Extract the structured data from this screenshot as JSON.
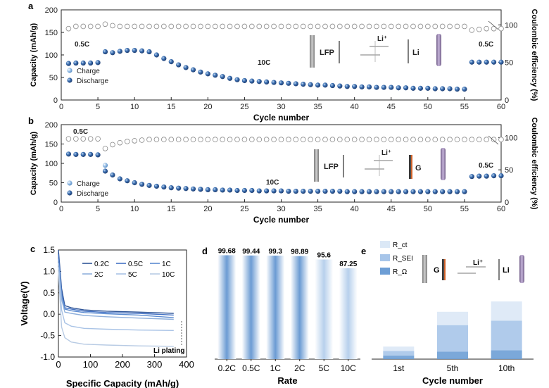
{
  "figure": {
    "panel_a": {
      "letter": "a",
      "title": "",
      "xlabel": "Cycle number",
      "ylabel_left": "Capacity (mAh/g)",
      "ylabel_right": "Coulombic efficiency (%)",
      "xlim": [
        0,
        60
      ],
      "ylim": [
        0,
        200
      ],
      "ylim_right": [
        0,
        120
      ],
      "xticks": [
        "0",
        "5",
        "10",
        "15",
        "20",
        "25",
        "30",
        "35",
        "40",
        "45",
        "50",
        "55",
        "60"
      ],
      "yticks": [
        "0",
        "50",
        "100",
        "150",
        "200"
      ],
      "yticks_right": [
        "0",
        "50",
        "100"
      ],
      "legend": [
        "Charge",
        "Discharge"
      ],
      "rate_labels": [
        "0.5C",
        "10C",
        "0.5C"
      ],
      "schematic": [
        "LFP",
        "Li⁺",
        "Li"
      ]
    },
    "panel_b": {
      "letter": "b",
      "xlabel": "Cycle number",
      "ylabel_left": "Capacity (mAh/g)",
      "ylabel_right": "Coulombic efficiency (%)",
      "xticks": [
        "0",
        "5",
        "10",
        "15",
        "20",
        "25",
        "30",
        "35",
        "40",
        "45",
        "50",
        "55",
        "60"
      ],
      "yticks": [
        "0",
        "50",
        "100",
        "150",
        "200"
      ],
      "yticks_right": [
        "0",
        "50",
        "100"
      ],
      "legend": [
        "Charge",
        "Discharge"
      ],
      "rate_labels": [
        "0.5C",
        "10C",
        "0.5C"
      ],
      "schematic": [
        "LFP",
        "Li⁺",
        "G"
      ]
    },
    "panel_c": {
      "letter": "c",
      "xlabel": "Specific Capacity (mAh/g)",
      "ylabel": "Voltage(V)",
      "xticks": [
        "0",
        "100",
        "200",
        "300",
        "400"
      ],
      "yticks": [
        "-1.0",
        "-0.5",
        "0.0",
        "0.5",
        "1.0",
        "1.5"
      ],
      "legend": [
        "0.2C",
        "0.5C",
        "1C",
        "2C",
        "5C",
        "10C"
      ],
      "annotation": "Li plating"
    },
    "panel_d": {
      "letter": "d",
      "xlabel": "Rate"
    },
    "panel_e": {
      "letter": "e",
      "xlabel": "Cycle number",
      "legend": [
        "R_ct",
        "R_SEI",
        "R_Ω"
      ],
      "schematic": [
        "G",
        "Li⁺",
        "Li"
      ]
    }
  },
  "chart_data": [
    {
      "type": "scatter",
      "panel": "a",
      "xlim": [
        0,
        60
      ],
      "ylim": [
        0,
        200
      ],
      "ylim_right": [
        0,
        120
      ],
      "series": [
        {
          "name": "Discharge",
          "axis": "left",
          "x": [
            1,
            2,
            3,
            4,
            5,
            6,
            7,
            8,
            9,
            10,
            11,
            12,
            13,
            14,
            15,
            16,
            17,
            18,
            19,
            20,
            21,
            22,
            23,
            24,
            25,
            26,
            27,
            28,
            29,
            30,
            31,
            32,
            33,
            34,
            35,
            36,
            37,
            38,
            39,
            40,
            41,
            42,
            43,
            44,
            45,
            46,
            47,
            48,
            49,
            50,
            51,
            52,
            53,
            54,
            55,
            56,
            57,
            58,
            59,
            60
          ],
          "values": [
            81,
            82,
            82,
            82,
            83,
            107,
            105,
            108,
            110,
            110,
            109,
            107,
            100,
            92,
            85,
            78,
            72,
            67,
            62,
            58,
            55,
            52,
            48,
            45,
            43,
            42,
            41,
            40,
            39,
            38,
            37,
            36,
            35,
            34,
            33,
            33,
            32,
            31,
            30,
            30,
            29,
            29,
            28,
            28,
            28,
            27,
            27,
            26,
            26,
            26,
            25,
            25,
            25,
            24,
            24,
            84,
            84,
            84,
            84,
            84
          ]
        },
        {
          "name": "Coulombic efficiency",
          "axis": "right",
          "x": [
            1,
            2,
            3,
            4,
            5,
            6,
            7,
            8,
            9,
            10,
            11,
            12,
            13,
            14,
            15,
            16,
            17,
            18,
            19,
            20,
            21,
            22,
            23,
            24,
            25,
            26,
            27,
            28,
            29,
            30,
            31,
            32,
            33,
            34,
            35,
            36,
            37,
            38,
            39,
            40,
            41,
            42,
            43,
            44,
            45,
            46,
            47,
            48,
            49,
            50,
            51,
            52,
            53,
            54,
            55,
            56,
            57,
            58,
            59,
            60
          ],
          "values": [
            95,
            98,
            98,
            98,
            98,
            101,
            99,
            98,
            98,
            98,
            98,
            98,
            98,
            98,
            98,
            98,
            98,
            98,
            98,
            98,
            98,
            98,
            98,
            98,
            98,
            98,
            98,
            98,
            98,
            98,
            98,
            98,
            98,
            98,
            98,
            98,
            98,
            98,
            98,
            98,
            98,
            98,
            98,
            98,
            98,
            98,
            98,
            98,
            98,
            98,
            98,
            98,
            98,
            98,
            98,
            93,
            94,
            95,
            95,
            95
          ]
        }
      ]
    },
    {
      "type": "scatter",
      "panel": "b",
      "xlim": [
        0,
        60
      ],
      "ylim": [
        0,
        200
      ],
      "ylim_right": [
        0,
        120
      ],
      "series": [
        {
          "name": "Discharge",
          "axis": "left",
          "x": [
            1,
            2,
            3,
            4,
            5,
            6,
            7,
            8,
            9,
            10,
            11,
            12,
            13,
            14,
            15,
            16,
            17,
            18,
            19,
            20,
            21,
            22,
            23,
            24,
            25,
            26,
            27,
            28,
            29,
            30,
            31,
            32,
            33,
            34,
            35,
            36,
            37,
            38,
            39,
            40,
            41,
            42,
            43,
            44,
            45,
            46,
            47,
            48,
            49,
            50,
            51,
            52,
            53,
            54,
            55,
            56,
            57,
            58,
            59,
            60
          ],
          "values": [
            124,
            123,
            123,
            123,
            122,
            80,
            70,
            60,
            55,
            50,
            46,
            43,
            41,
            39,
            37,
            36,
            35,
            34,
            33,
            32,
            32,
            31,
            31,
            30,
            30,
            30,
            29,
            29,
            29,
            29,
            28,
            28,
            28,
            28,
            28,
            28,
            28,
            28,
            27,
            27,
            27,
            27,
            27,
            27,
            27,
            27,
            27,
            27,
            27,
            27,
            27,
            27,
            27,
            27,
            27,
            66,
            67,
            67,
            68,
            68
          ]
        },
        {
          "name": "Charge",
          "axis": "left",
          "x": [
            6
          ],
          "values": [
            95
          ]
        },
        {
          "name": "Coulombic efficiency",
          "axis": "right",
          "x": [
            1,
            2,
            3,
            4,
            5,
            6,
            7,
            8,
            9,
            10,
            11,
            12,
            13,
            14,
            15,
            16,
            17,
            18,
            19,
            20,
            21,
            22,
            23,
            24,
            25,
            26,
            27,
            28,
            29,
            30,
            31,
            32,
            33,
            34,
            35,
            36,
            37,
            38,
            39,
            40,
            41,
            42,
            43,
            44,
            45,
            46,
            47,
            48,
            49,
            50,
            51,
            52,
            53,
            54,
            55,
            56,
            57,
            58,
            59,
            60
          ],
          "values": [
            98,
            98,
            98,
            98,
            98,
            83,
            89,
            92,
            94,
            95,
            96,
            97,
            97,
            97,
            97,
            97,
            97,
            97,
            97,
            97,
            97,
            97,
            97,
            97,
            97,
            97,
            97,
            97,
            97,
            97,
            97,
            97,
            97,
            97,
            97,
            97,
            97,
            97,
            97,
            97,
            97,
            97,
            97,
            97,
            97,
            97,
            97,
            97,
            97,
            97,
            97,
            97,
            97,
            97,
            97,
            97,
            97,
            97,
            97,
            97
          ]
        }
      ]
    },
    {
      "type": "line",
      "panel": "c",
      "xlim": [
        0,
        400
      ],
      "ylim": [
        -1.0,
        1.5
      ],
      "series": [
        {
          "name": "0.2C",
          "x": [
            0,
            10,
            20,
            40,
            80,
            150,
            250,
            360
          ],
          "values": [
            1.5,
            0.6,
            0.2,
            0.15,
            0.1,
            0.07,
            0.05,
            0.02
          ]
        },
        {
          "name": "0.5C",
          "x": [
            0,
            10,
            20,
            40,
            80,
            150,
            250,
            360
          ],
          "values": [
            1.4,
            0.5,
            0.15,
            0.12,
            0.07,
            0.04,
            0.02,
            -0.02
          ]
        },
        {
          "name": "1C",
          "x": [
            0,
            10,
            20,
            40,
            80,
            150,
            250,
            360
          ],
          "values": [
            1.3,
            0.45,
            0.12,
            0.08,
            0.04,
            0.01,
            -0.02,
            -0.08
          ]
        },
        {
          "name": "2C",
          "x": [
            0,
            10,
            20,
            40,
            80,
            150,
            250,
            360
          ],
          "values": [
            1.2,
            0.35,
            0.05,
            0.02,
            -0.03,
            -0.06,
            -0.09,
            -0.12
          ]
        },
        {
          "name": "5C",
          "x": [
            0,
            10,
            20,
            40,
            80,
            150,
            250,
            360
          ],
          "values": [
            1.1,
            0.1,
            -0.2,
            -0.28,
            -0.33,
            -0.35,
            -0.37,
            -0.38
          ]
        },
        {
          "name": "10C",
          "x": [
            0,
            10,
            20,
            40,
            80,
            150,
            250,
            360
          ],
          "values": [
            1.0,
            -0.3,
            -0.55,
            -0.65,
            -0.7,
            -0.72,
            -0.74,
            -0.75
          ]
        }
      ]
    },
    {
      "type": "bar",
      "panel": "d",
      "categories": [
        "0.2C",
        "0.5C",
        "1C",
        "2C",
        "5C",
        "10C"
      ],
      "values": [
        99.68,
        99.44,
        99.3,
        98.89,
        95.6,
        87.25
      ],
      "data_labels": [
        "99.68",
        "99.44",
        "99.3",
        "98.89",
        "95.6",
        "87.25"
      ]
    },
    {
      "type": "bar",
      "panel": "e",
      "stacked": true,
      "categories": [
        "1st",
        "5th",
        "10th"
      ],
      "series": [
        {
          "name": "R_Ω",
          "values": [
            5,
            10,
            12
          ]
        },
        {
          "name": "R_SEI",
          "values": [
            6,
            36,
            40
          ]
        },
        {
          "name": "R_ct",
          "values": [
            6,
            18,
            26
          ]
        }
      ]
    }
  ]
}
